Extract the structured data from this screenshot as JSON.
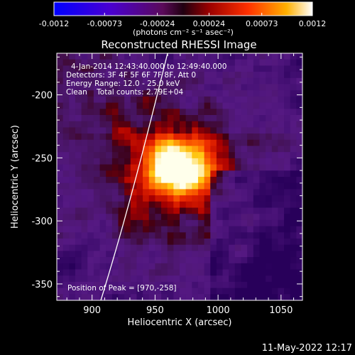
{
  "colorbar": {
    "ticks": [
      "-0.0012",
      "-0.00073",
      "-0.00024",
      "0.00024",
      "0.00073",
      "0.0012"
    ],
    "unit_label": "(photons cm⁻² s⁻¹ asec⁻²)",
    "range": [
      -0.0012,
      0.0012
    ]
  },
  "chart_data": {
    "type": "heatmap",
    "title": "Reconstructed RHESSI Image",
    "xlabel": "Heliocentric X (arcsec)",
    "ylabel": "Heliocentric Y (arcsec)",
    "xlim": [
      872,
      1067
    ],
    "ylim": [
      -363,
      -167
    ],
    "xticks": [
      900,
      950,
      1000,
      1050
    ],
    "yticks": [
      -200,
      -250,
      -300,
      -350
    ],
    "peak": [
      970,
      -258
    ],
    "annotations": [
      "4-Jan-2014 12:43:40.000 to 12:49:40.000",
      "Detectors: 3F 4F 5F 6F 7F 8F, Att 0",
      "Energy Range: 12.0 - 25.0 keV",
      "Clean    Total counts: 2.79E+04"
    ],
    "peak_label": "Position of Peak = [970,-258]"
  },
  "footer": {
    "timestamp": "11-May-2022 12:17"
  }
}
